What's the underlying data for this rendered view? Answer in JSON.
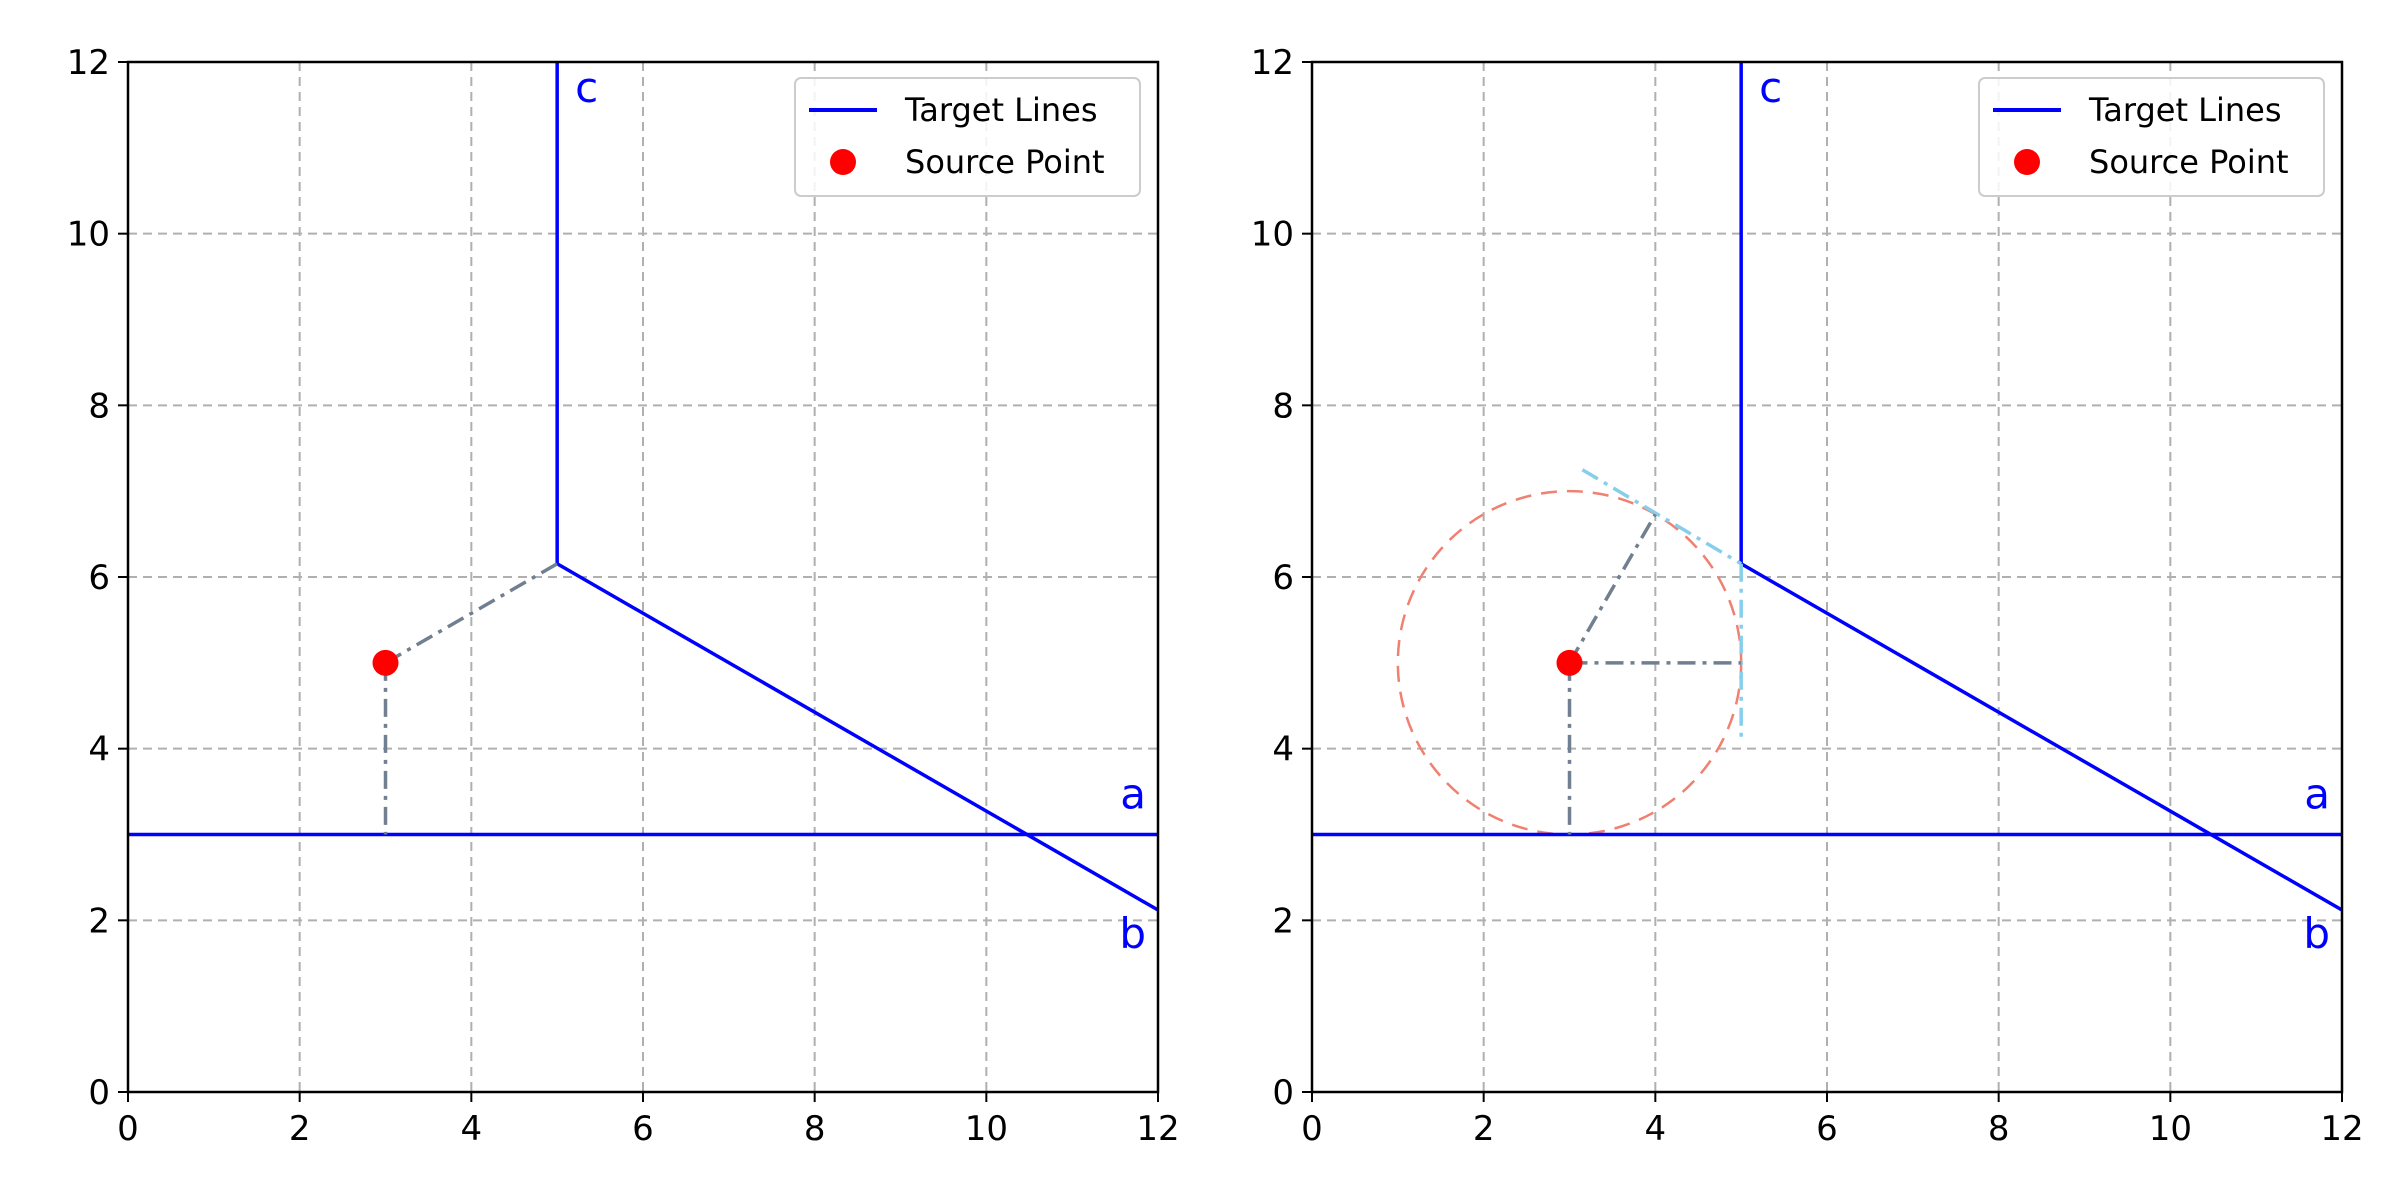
{
  "chart_data": [
    {
      "type": "line",
      "title": "",
      "xlabel": "",
      "ylabel": "",
      "xlim": [
        0,
        12
      ],
      "ylim": [
        0,
        12
      ],
      "xticks": [
        "0",
        "2",
        "4",
        "6",
        "8",
        "10",
        "12"
      ],
      "yticks": [
        "0",
        "2",
        "4",
        "6",
        "8",
        "10",
        "12"
      ],
      "grid": true,
      "legend_position": "top-right",
      "legend": [
        {
          "label": "Target Lines",
          "kind": "line",
          "color": "#0000ff"
        },
        {
          "label": "Source Point",
          "kind": "marker",
          "color": "#ff0000"
        }
      ],
      "target_lines": [
        {
          "label": "a",
          "points": [
            [
              0,
              3
            ],
            [
              12,
              3
            ]
          ]
        },
        {
          "label": "b",
          "points": [
            [
              5,
              6.154
            ],
            [
              12,
              2.12
            ]
          ]
        },
        {
          "label": "c",
          "points": [
            [
              5,
              6.154
            ],
            [
              5,
              12
            ]
          ]
        }
      ],
      "source_point": [
        3,
        5
      ],
      "paths": [
        {
          "points": [
            [
              3,
              5
            ],
            [
              3,
              3
            ]
          ],
          "color": "#708090",
          "style": "dashdot"
        },
        {
          "points": [
            [
              3,
              5
            ],
            [
              5,
              6.154
            ]
          ],
          "color": "#708090",
          "style": "dashdot"
        }
      ],
      "circle": null,
      "extra_lines": []
    },
    {
      "type": "line",
      "title": "",
      "xlabel": "",
      "ylabel": "",
      "xlim": [
        0,
        12
      ],
      "ylim": [
        0,
        12
      ],
      "xticks": [
        "0",
        "2",
        "4",
        "6",
        "8",
        "10",
        "12"
      ],
      "yticks": [
        "0",
        "2",
        "4",
        "6",
        "8",
        "10",
        "12"
      ],
      "grid": true,
      "legend_position": "top-right",
      "legend": [
        {
          "label": "Target Lines",
          "kind": "line",
          "color": "#0000ff"
        },
        {
          "label": "Source Point",
          "kind": "marker",
          "color": "#ff0000"
        }
      ],
      "target_lines": [
        {
          "label": "a",
          "points": [
            [
              0,
              3
            ],
            [
              12,
              3
            ]
          ]
        },
        {
          "label": "b",
          "points": [
            [
              5,
              6.154
            ],
            [
              12,
              2.12
            ]
          ]
        },
        {
          "label": "c",
          "points": [
            [
              5,
              6.154
            ],
            [
              5,
              12
            ]
          ]
        }
      ],
      "source_point": [
        3,
        5
      ],
      "paths": [
        {
          "points": [
            [
              3,
              5
            ],
            [
              3,
              3
            ]
          ],
          "color": "#708090",
          "style": "dashdot"
        },
        {
          "points": [
            [
              3,
              5
            ],
            [
              5,
              5
            ]
          ],
          "color": "#708090",
          "style": "dashdot"
        },
        {
          "points": [
            [
              3,
              5
            ],
            [
              4,
              6.73
            ]
          ],
          "color": "#708090",
          "style": "dashdot"
        }
      ],
      "circle": {
        "center": [
          3,
          5
        ],
        "radius": 2,
        "color": "#f08070",
        "style": "dashed"
      },
      "extra_lines": [
        {
          "points": [
            [
              3.15,
              7.25
            ],
            [
              5,
              6.154
            ]
          ],
          "color": "#87ceeb",
          "style": "dashdot"
        },
        {
          "points": [
            [
              5,
              6.154
            ],
            [
              5,
              4.1
            ]
          ],
          "color": "#87ceeb",
          "style": "dashdot"
        }
      ]
    }
  ]
}
